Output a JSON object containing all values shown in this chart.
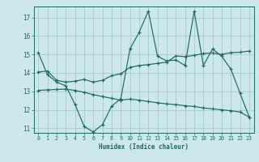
{
  "xlabel": "Humidex (Indice chaleur)",
  "bg_color": "#cce8ec",
  "line_color": "#1e6b5e",
  "grid_color": "#aacfd4",
  "xlim": [
    -0.5,
    23.5
  ],
  "ylim": [
    10.75,
    17.6
  ],
  "yticks": [
    11,
    12,
    13,
    14,
    15,
    16,
    17
  ],
  "xticks": [
    0,
    1,
    2,
    3,
    4,
    5,
    6,
    7,
    8,
    9,
    10,
    11,
    12,
    13,
    14,
    15,
    16,
    17,
    18,
    19,
    20,
    21,
    22,
    23
  ],
  "line1_x": [
    0,
    1,
    2,
    3,
    4,
    5,
    6,
    7,
    8,
    9,
    10,
    11,
    12,
    13,
    14,
    15,
    16,
    17,
    18,
    19,
    20,
    21,
    22,
    23
  ],
  "line1_y": [
    15.1,
    13.9,
    13.5,
    13.3,
    12.3,
    11.1,
    10.8,
    11.2,
    12.2,
    12.6,
    15.3,
    16.2,
    17.35,
    14.9,
    14.65,
    14.7,
    14.4,
    17.35,
    14.4,
    15.3,
    14.9,
    14.2,
    12.9,
    11.6
  ],
  "line2_x": [
    0,
    1,
    2,
    3,
    4,
    5,
    6,
    7,
    8,
    9,
    10,
    11,
    12,
    13,
    14,
    15,
    16,
    17,
    18,
    19,
    20,
    21,
    22,
    23
  ],
  "line2_y": [
    14.05,
    14.1,
    13.6,
    13.5,
    13.55,
    13.65,
    13.5,
    13.6,
    13.85,
    13.95,
    14.3,
    14.4,
    14.45,
    14.52,
    14.58,
    14.92,
    14.88,
    14.95,
    15.05,
    15.08,
    15.0,
    15.1,
    15.12,
    15.18
  ],
  "line3_x": [
    0,
    1,
    2,
    3,
    4,
    5,
    6,
    7,
    8,
    9,
    10,
    11,
    12,
    13,
    14,
    15,
    16,
    17,
    18,
    19,
    20,
    21,
    22,
    23
  ],
  "line3_y": [
    13.05,
    13.08,
    13.1,
    13.12,
    13.05,
    12.95,
    12.82,
    12.72,
    12.62,
    12.52,
    12.58,
    12.52,
    12.45,
    12.38,
    12.32,
    12.28,
    12.22,
    12.18,
    12.1,
    12.05,
    12.0,
    11.95,
    11.88,
    11.6
  ]
}
